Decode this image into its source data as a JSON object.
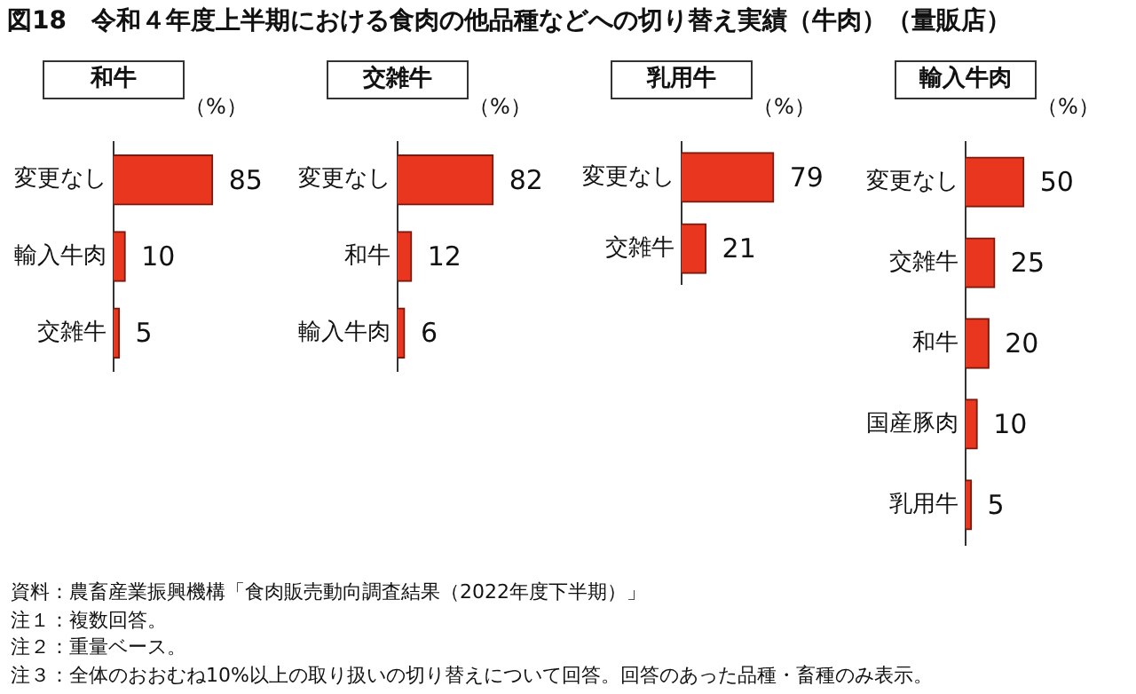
{
  "chart_data": [
    {
      "type": "other",
      "title": "図18　令和４年度上半期における食肉の他品種などへの切り替え実績（牛肉）（量販店）"
    },
    {
      "type": "bar",
      "orientation": "horizontal",
      "title": "和牛",
      "xlabel": "（%）",
      "categories": [
        "変更なし",
        "輸入牛肉",
        "交雑牛"
      ],
      "values": [
        85,
        10,
        5
      ],
      "color": "#e8361f",
      "data_labels": true
    },
    {
      "type": "bar",
      "orientation": "horizontal",
      "title": "交雑牛",
      "xlabel": "（%）",
      "categories": [
        "変更なし",
        "和牛",
        "輸入牛肉"
      ],
      "values": [
        82,
        12,
        6
      ],
      "color": "#e8361f",
      "data_labels": true
    },
    {
      "type": "bar",
      "orientation": "horizontal",
      "title": "乳用牛",
      "xlabel": "（%）",
      "categories": [
        "変更なし",
        "交雑牛"
      ],
      "values": [
        79,
        21
      ],
      "color": "#e8361f",
      "data_labels": true
    },
    {
      "type": "bar",
      "orientation": "horizontal",
      "title": "輸入牛肉",
      "xlabel": "（%）",
      "categories": [
        "変更なし",
        "交雑牛",
        "和牛",
        "国産豚肉",
        "乳用牛"
      ],
      "values": [
        50,
        25,
        20,
        10,
        5
      ],
      "color": "#e8361f",
      "data_labels": true
    },
    {
      "type": "other",
      "annotations": [
        "資料：農畜産業振興機構「食肉販売動向調査結果（2022年度下半期）」",
        "注１：複数回答。",
        "注２：重量ベース。",
        "注３：全体のおおむね10%以上の取り扱いの切り替えについて回答。回答のあった品種・畜種のみ表示。"
      ]
    }
  ]
}
